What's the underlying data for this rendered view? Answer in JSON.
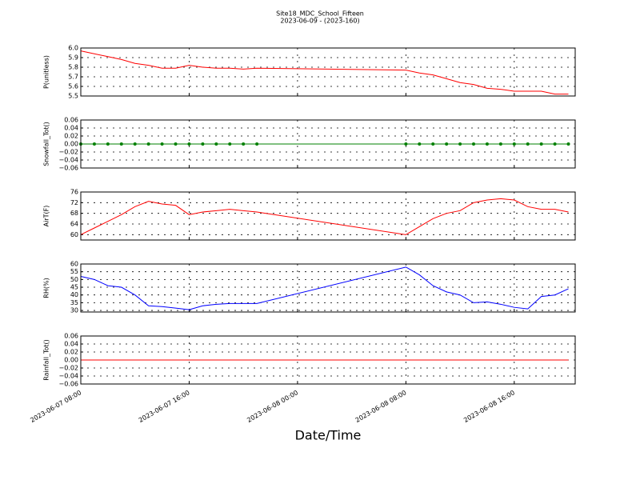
{
  "chart_data": [
    {
      "type": "line",
      "title": "Site18_MDC_School_Fifteen",
      "subtitle": "2023-06-09 - (2023-160)",
      "ylabel": "P(unitless)",
      "x": [
        "2023-06-07 08:00",
        "2023-06-07 09:00",
        "2023-06-07 10:00",
        "2023-06-07 11:00",
        "2023-06-07 12:00",
        "2023-06-07 13:00",
        "2023-06-07 14:00",
        "2023-06-07 15:00",
        "2023-06-07 16:00",
        "2023-06-07 17:00",
        "2023-06-07 18:00",
        "2023-06-07 19:00",
        "2023-06-07 20:00",
        "2023-06-07 21:00",
        "2023-06-08 08:00",
        "2023-06-08 09:00",
        "2023-06-08 10:00",
        "2023-06-08 11:00",
        "2023-06-08 12:00",
        "2023-06-08 13:00",
        "2023-06-08 14:00",
        "2023-06-08 15:00",
        "2023-06-08 16:00",
        "2023-06-08 17:00",
        "2023-06-08 18:00",
        "2023-06-08 19:00",
        "2023-06-08 20:00"
      ],
      "series": [
        {
          "color": "#ff0000",
          "values": [
            5.97,
            5.94,
            5.91,
            5.88,
            5.84,
            5.82,
            5.79,
            5.79,
            5.82,
            5.8,
            5.79,
            5.79,
            5.78,
            5.79,
            5.77,
            5.74,
            5.72,
            5.68,
            5.64,
            5.62,
            5.58,
            5.57,
            5.55,
            5.55,
            5.55,
            5.52,
            5.52
          ]
        }
      ],
      "xlim": [
        "2023-06-07 08:00",
        "2023-06-08 20:30"
      ],
      "xticks": [
        "2023-06-07 08:00",
        "2023-06-07 16:00",
        "2023-06-08 00:00",
        "2023-06-08 08:00",
        "2023-06-08 16:00"
      ],
      "ylim": [
        5.5,
        6.0
      ],
      "yticks": [
        5.5,
        5.6,
        5.7,
        5.8,
        5.9,
        {
          "value": 6.0,
          "label": "6.0"
        }
      ],
      "grid": true
    },
    {
      "type": "line",
      "ylabel": "Snowfall_Tot()",
      "x": [
        "2023-06-07 08:00",
        "2023-06-07 09:00",
        "2023-06-07 10:00",
        "2023-06-07 11:00",
        "2023-06-07 12:00",
        "2023-06-07 13:00",
        "2023-06-07 14:00",
        "2023-06-07 15:00",
        "2023-06-07 16:00",
        "2023-06-07 17:00",
        "2023-06-07 18:00",
        "2023-06-07 19:00",
        "2023-06-07 20:00",
        "2023-06-07 21:00",
        "2023-06-08 08:00",
        "2023-06-08 09:00",
        "2023-06-08 10:00",
        "2023-06-08 11:00",
        "2023-06-08 12:00",
        "2023-06-08 13:00",
        "2023-06-08 14:00",
        "2023-06-08 15:00",
        "2023-06-08 16:00",
        "2023-06-08 17:00",
        "2023-06-08 18:00",
        "2023-06-08 19:00",
        "2023-06-08 20:00"
      ],
      "series": [
        {
          "color": "#008000",
          "marker": true,
          "values": [
            0,
            0,
            0,
            0,
            0,
            0,
            0,
            0,
            0,
            0,
            0,
            0,
            0,
            0,
            0,
            0,
            0,
            0,
            0,
            0,
            0,
            0,
            0,
            0,
            0,
            0,
            0
          ]
        }
      ],
      "xlim": [
        "2023-06-07 08:00",
        "2023-06-08 20:30"
      ],
      "xticks": [
        "2023-06-07 08:00",
        "2023-06-07 16:00",
        "2023-06-08 00:00",
        "2023-06-08 08:00",
        "2023-06-08 16:00"
      ],
      "ylim": [
        -0.06,
        0.06
      ],
      "yticks": [
        {
          "value": -0.06,
          "label": "−0.06"
        },
        {
          "value": -0.04,
          "label": "−0.04"
        },
        {
          "value": -0.02,
          "label": "−0.02"
        },
        {
          "value": 0,
          "label": "0.00"
        },
        0.02,
        0.04,
        0.06
      ],
      "grid": true
    },
    {
      "type": "line",
      "ylabel": "AirT(F)",
      "x": [
        "2023-06-07 08:00",
        "2023-06-07 09:00",
        "2023-06-07 10:00",
        "2023-06-07 11:00",
        "2023-06-07 12:00",
        "2023-06-07 13:00",
        "2023-06-07 14:00",
        "2023-06-07 15:00",
        "2023-06-07 16:00",
        "2023-06-07 17:00",
        "2023-06-07 18:00",
        "2023-06-07 19:00",
        "2023-06-07 20:00",
        "2023-06-07 21:00",
        "2023-06-08 08:00",
        "2023-06-08 09:00",
        "2023-06-08 10:00",
        "2023-06-08 11:00",
        "2023-06-08 12:00",
        "2023-06-08 13:00",
        "2023-06-08 14:00",
        "2023-06-08 15:00",
        "2023-06-08 16:00",
        "2023-06-08 17:00",
        "2023-06-08 18:00",
        "2023-06-08 19:00",
        "2023-06-08 20:00"
      ],
      "series": [
        {
          "color": "#ff0000",
          "values": [
            60,
            62.5,
            65,
            67.5,
            70.5,
            72.5,
            71.5,
            71,
            67.5,
            68.5,
            69,
            69.5,
            69,
            68.5,
            60,
            63,
            66,
            68,
            69,
            72,
            73,
            73.5,
            73,
            70.5,
            69.5,
            69.5,
            68.5
          ]
        }
      ],
      "xlim": [
        "2023-06-07 08:00",
        "2023-06-08 20:30"
      ],
      "xticks": [
        "2023-06-07 08:00",
        "2023-06-07 16:00",
        "2023-06-08 00:00",
        "2023-06-08 08:00",
        "2023-06-08 16:00"
      ],
      "ylim": [
        58,
        76
      ],
      "yticks": [
        60,
        64,
        68,
        72,
        76
      ],
      "grid": true
    },
    {
      "type": "line",
      "ylabel": "RH(%)",
      "x": [
        "2023-06-07 08:00",
        "2023-06-07 09:00",
        "2023-06-07 10:00",
        "2023-06-07 11:00",
        "2023-06-07 12:00",
        "2023-06-07 13:00",
        "2023-06-07 14:00",
        "2023-06-07 15:00",
        "2023-06-07 16:00",
        "2023-06-07 17:00",
        "2023-06-07 18:00",
        "2023-06-07 19:00",
        "2023-06-07 20:00",
        "2023-06-07 21:00",
        "2023-06-08 08:00",
        "2023-06-08 09:00",
        "2023-06-08 10:00",
        "2023-06-08 11:00",
        "2023-06-08 12:00",
        "2023-06-08 13:00",
        "2023-06-08 14:00",
        "2023-06-08 15:00",
        "2023-06-08 16:00",
        "2023-06-08 17:00",
        "2023-06-08 18:00",
        "2023-06-08 19:00",
        "2023-06-08 20:00"
      ],
      "series": [
        {
          "color": "#0000ff",
          "values": [
            52,
            50,
            46,
            45,
            40,
            33,
            32.5,
            31.5,
            30.5,
            33,
            34,
            34.5,
            34.5,
            34.5,
            58,
            53,
            46,
            42,
            40,
            35,
            35.5,
            34,
            32,
            31,
            39,
            40,
            44
          ]
        }
      ],
      "xlim": [
        "2023-06-07 08:00",
        "2023-06-08 20:30"
      ],
      "xticks": [
        "2023-06-07 08:00",
        "2023-06-07 16:00",
        "2023-06-08 00:00",
        "2023-06-08 08:00",
        "2023-06-08 16:00"
      ],
      "ylim": [
        29,
        60
      ],
      "yticks": [
        30,
        35,
        40,
        45,
        50,
        55,
        60
      ],
      "grid": true
    },
    {
      "type": "line",
      "ylabel": "Rainfall_Tot()",
      "xlabel": "Date/Time",
      "x": [
        "2023-06-07 08:00",
        "2023-06-07 09:00",
        "2023-06-07 10:00",
        "2023-06-07 11:00",
        "2023-06-07 12:00",
        "2023-06-07 13:00",
        "2023-06-07 14:00",
        "2023-06-07 15:00",
        "2023-06-07 16:00",
        "2023-06-07 17:00",
        "2023-06-07 18:00",
        "2023-06-07 19:00",
        "2023-06-07 20:00",
        "2023-06-07 21:00",
        "2023-06-08 08:00",
        "2023-06-08 09:00",
        "2023-06-08 10:00",
        "2023-06-08 11:00",
        "2023-06-08 12:00",
        "2023-06-08 13:00",
        "2023-06-08 14:00",
        "2023-06-08 15:00",
        "2023-06-08 16:00",
        "2023-06-08 17:00",
        "2023-06-08 18:00",
        "2023-06-08 19:00",
        "2023-06-08 20:00"
      ],
      "series": [
        {
          "color": "#ff0000",
          "values": [
            0,
            0,
            0,
            0,
            0,
            0,
            0,
            0,
            0,
            0,
            0,
            0,
            0,
            0,
            0,
            0,
            0,
            0,
            0,
            0,
            0,
            0,
            0,
            0,
            0,
            0,
            0
          ]
        }
      ],
      "xlim": [
        "2023-06-07 08:00",
        "2023-06-08 20:30"
      ],
      "xticks": [
        "2023-06-07 08:00",
        "2023-06-07 16:00",
        "2023-06-08 00:00",
        "2023-06-08 08:00",
        "2023-06-08 16:00"
      ],
      "ylim": [
        -0.06,
        0.06
      ],
      "yticks": [
        {
          "value": -0.06,
          "label": "−0.06"
        },
        {
          "value": -0.04,
          "label": "−0.04"
        },
        {
          "value": -0.02,
          "label": "−0.02"
        },
        {
          "value": 0,
          "label": "0.00"
        },
        0.02,
        0.04,
        0.06
      ],
      "grid": true
    }
  ]
}
